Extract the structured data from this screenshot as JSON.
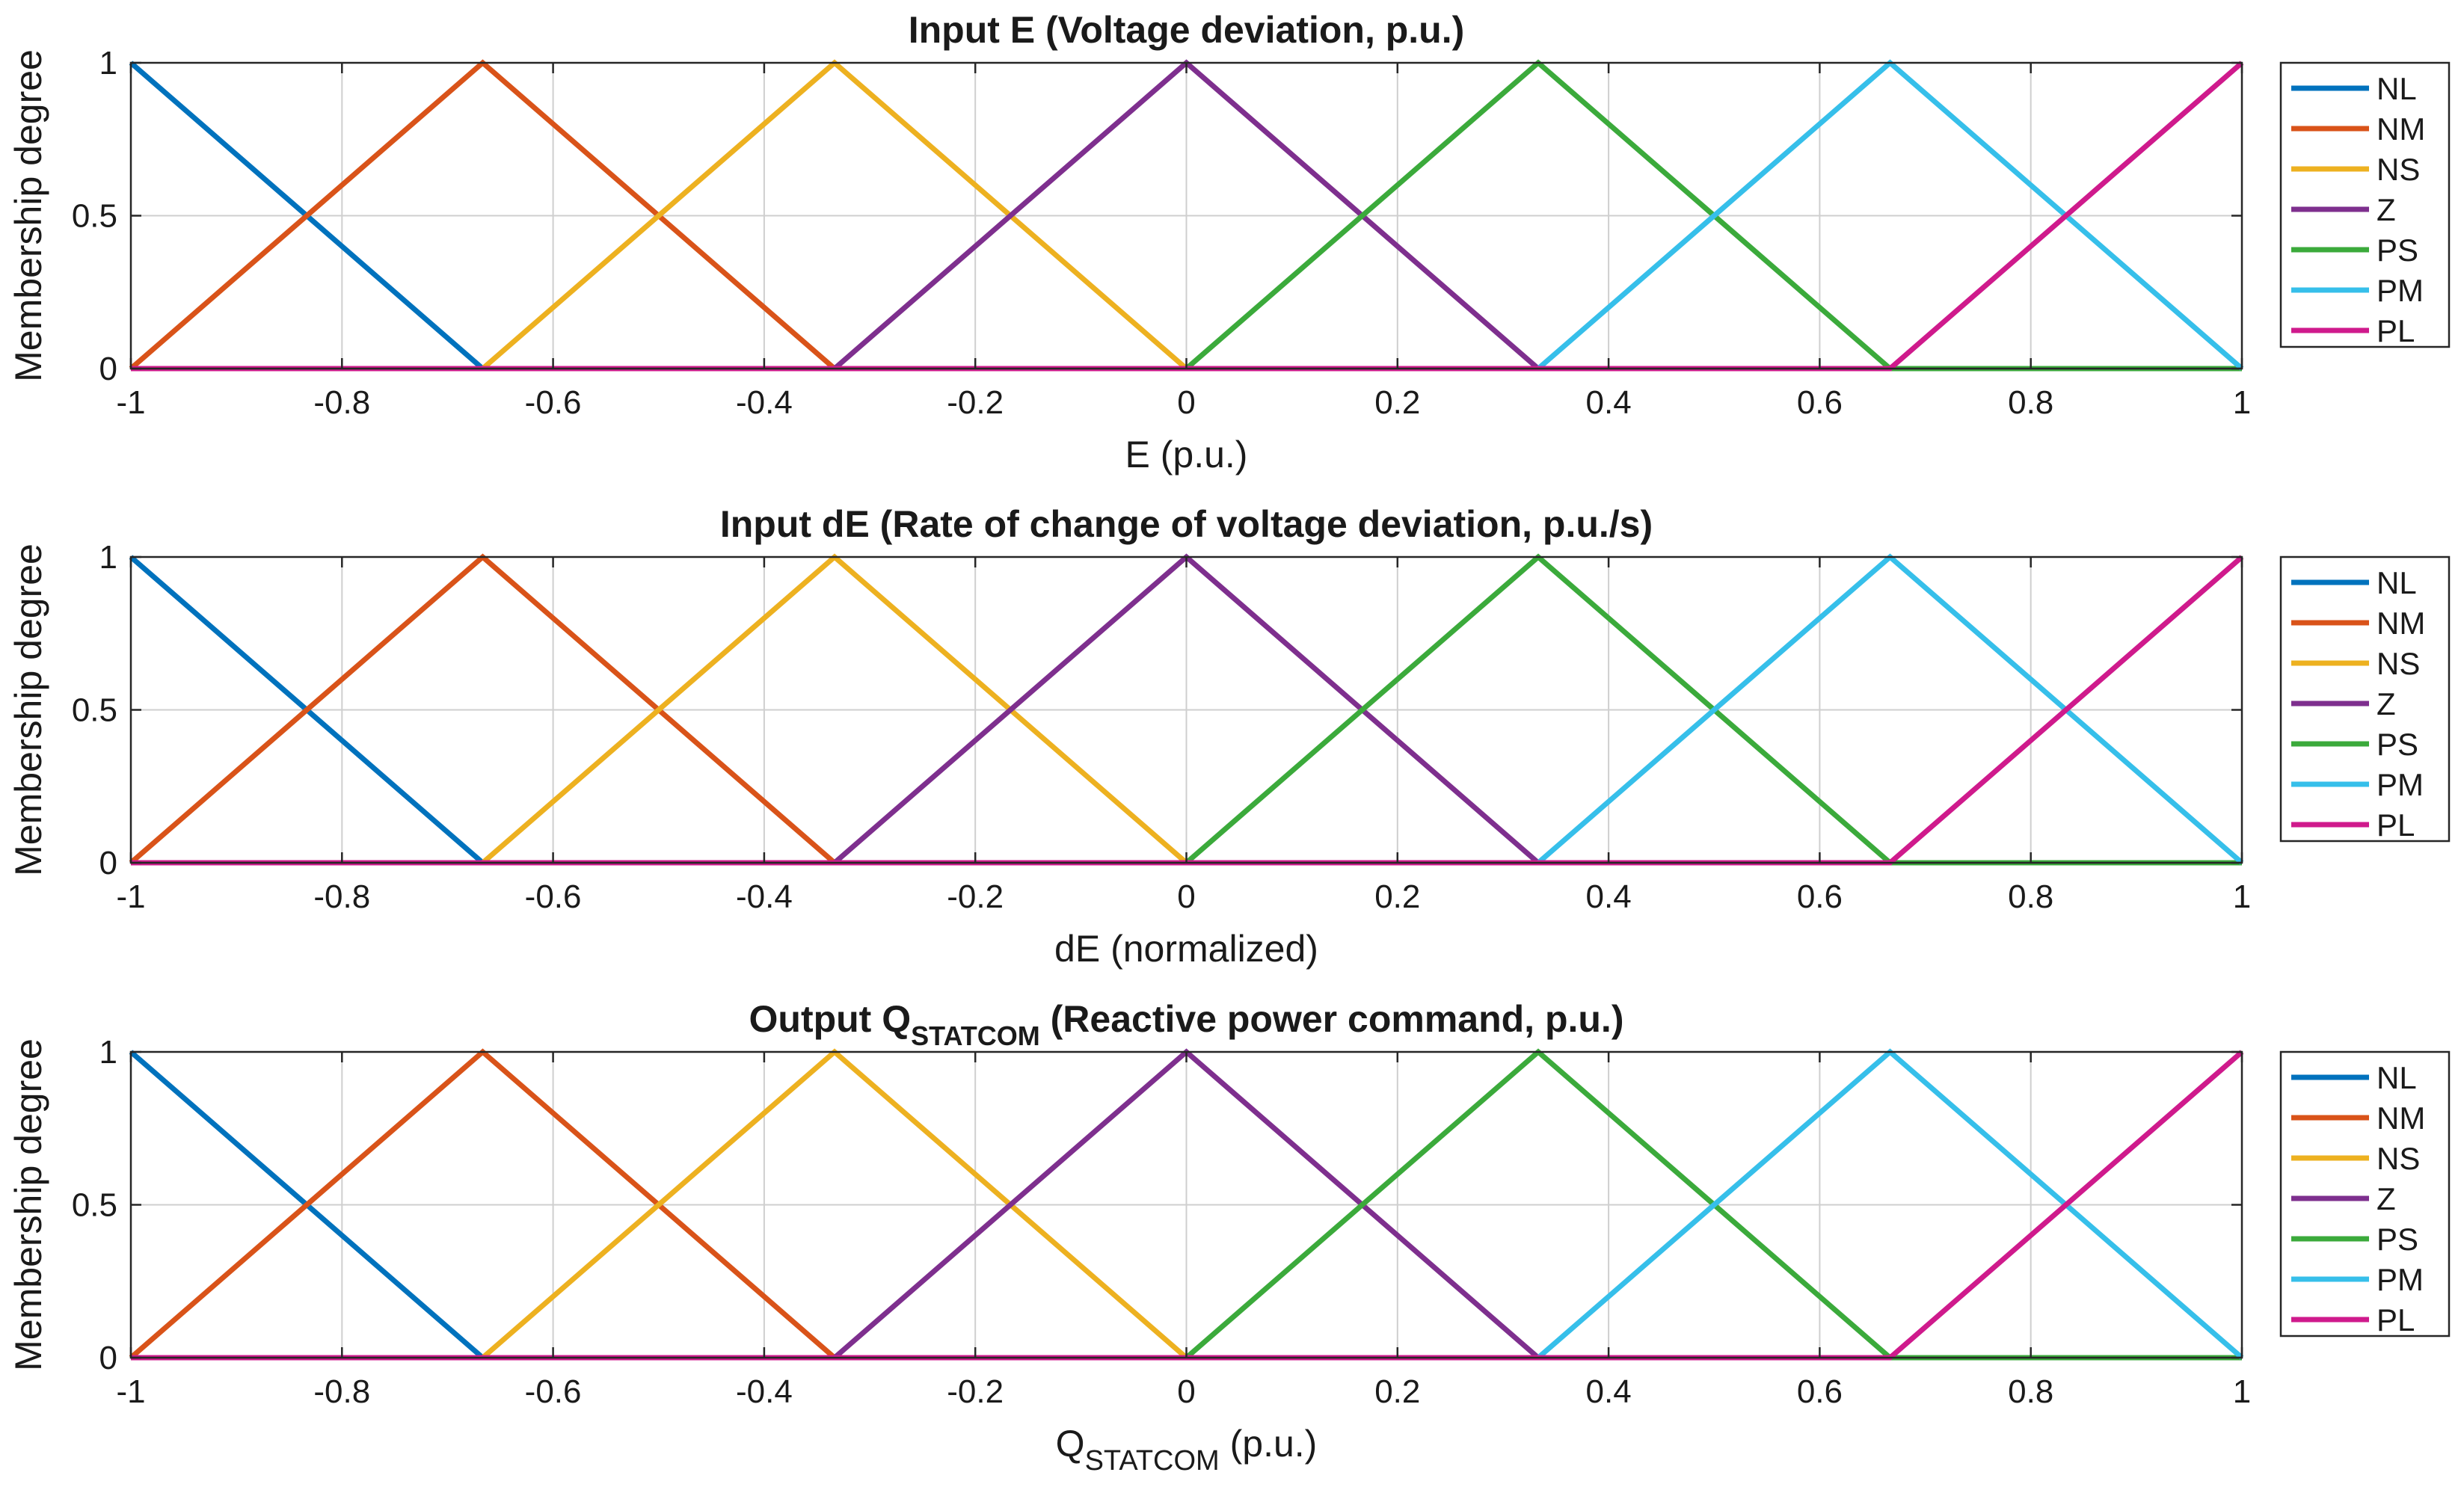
{
  "chart_data": [
    {
      "type": "line",
      "title": "Input E (Voltage deviation, p.u.)",
      "xlabel": "E (p.u.)",
      "ylabel": "Membership degree",
      "xlim": [
        -1,
        1
      ],
      "ylim": [
        0,
        1
      ],
      "xticks": [
        -1,
        -0.8,
        -0.6,
        -0.4,
        -0.2,
        0,
        0.2,
        0.4,
        0.6,
        0.8,
        1
      ],
      "xtick_labels": [
        "-1",
        "-0.8",
        "-0.6",
        "-0.4",
        "-0.2",
        "0",
        "0.2",
        "0.4",
        "0.6",
        "0.8",
        "1"
      ],
      "yticks": [
        0,
        0.5,
        1
      ],
      "ytick_labels": [
        "0",
        "0.5",
        "1"
      ],
      "grid": true,
      "legend_position": "outside-right",
      "series": [
        {
          "name": "NL",
          "color": "#0072BD",
          "x": [
            -1,
            -1,
            -0.6667,
            1
          ],
          "y": [
            1,
            1,
            0,
            0
          ]
        },
        {
          "name": "NM",
          "color": "#D95319",
          "x": [
            -1,
            -0.6667,
            -0.3333,
            1
          ],
          "y": [
            0,
            1,
            0,
            0
          ]
        },
        {
          "name": "NS",
          "color": "#EDB120",
          "x": [
            -1,
            -0.6667,
            -0.3333,
            0,
            1
          ],
          "y": [
            0,
            0,
            1,
            0,
            0
          ]
        },
        {
          "name": "Z",
          "color": "#7E2F8E",
          "x": [
            -1,
            -0.3333,
            0,
            0.3333,
            1
          ],
          "y": [
            0,
            0,
            1,
            0,
            0
          ]
        },
        {
          "name": "PS",
          "color": "#3BAA3B",
          "x": [
            -1,
            0,
            0.3333,
            0.6667,
            1
          ],
          "y": [
            0,
            0,
            1,
            0,
            0
          ]
        },
        {
          "name": "PM",
          "color": "#36BFEA",
          "x": [
            -1,
            0.3333,
            0.6667,
            1
          ],
          "y": [
            0,
            0,
            1,
            0
          ]
        },
        {
          "name": "PL",
          "color": "#CF1A8C",
          "x": [
            -1,
            0.6667,
            1,
            1
          ],
          "y": [
            0,
            0,
            1,
            1
          ]
        }
      ]
    },
    {
      "type": "line",
      "title": "Input dE (Rate of change of voltage deviation, p.u./s)",
      "xlabel": "dE (normalized)",
      "ylabel": "Membership degree",
      "xlim": [
        -1,
        1
      ],
      "ylim": [
        0,
        1
      ],
      "xticks": [
        -1,
        -0.8,
        -0.6,
        -0.4,
        -0.2,
        0,
        0.2,
        0.4,
        0.6,
        0.8,
        1
      ],
      "xtick_labels": [
        "-1",
        "-0.8",
        "-0.6",
        "-0.4",
        "-0.2",
        "0",
        "0.2",
        "0.4",
        "0.6",
        "0.8",
        "1"
      ],
      "yticks": [
        0,
        0.5,
        1
      ],
      "ytick_labels": [
        "0",
        "0.5",
        "1"
      ],
      "grid": true,
      "legend_position": "outside-right",
      "series": [
        {
          "name": "NL",
          "color": "#0072BD",
          "x": [
            -1,
            -1,
            -0.6667,
            1
          ],
          "y": [
            1,
            1,
            0,
            0
          ]
        },
        {
          "name": "NM",
          "color": "#D95319",
          "x": [
            -1,
            -0.6667,
            -0.3333,
            1
          ],
          "y": [
            0,
            1,
            0,
            0
          ]
        },
        {
          "name": "NS",
          "color": "#EDB120",
          "x": [
            -1,
            -0.6667,
            -0.3333,
            0,
            1
          ],
          "y": [
            0,
            0,
            1,
            0,
            0
          ]
        },
        {
          "name": "Z",
          "color": "#7E2F8E",
          "x": [
            -1,
            -0.3333,
            0,
            0.3333,
            1
          ],
          "y": [
            0,
            0,
            1,
            0,
            0
          ]
        },
        {
          "name": "PS",
          "color": "#3BAA3B",
          "x": [
            -1,
            0,
            0.3333,
            0.6667,
            1
          ],
          "y": [
            0,
            0,
            1,
            0,
            0
          ]
        },
        {
          "name": "PM",
          "color": "#36BFEA",
          "x": [
            -1,
            0.3333,
            0.6667,
            1
          ],
          "y": [
            0,
            0,
            1,
            0
          ]
        },
        {
          "name": "PL",
          "color": "#CF1A8C",
          "x": [
            -1,
            0.6667,
            1,
            1
          ],
          "y": [
            0,
            0,
            1,
            1
          ]
        }
      ]
    },
    {
      "type": "line",
      "title_main": "Output Q",
      "title_sub": "STATCOM",
      "title_rest": " (Reactive power command, p.u.)",
      "xlabel_main": "Q",
      "xlabel_sub": "STATCOM",
      "xlabel_rest": " (p.u.)",
      "ylabel": "Membership degree",
      "xlim": [
        -1,
        1
      ],
      "ylim": [
        0,
        1
      ],
      "xticks": [
        -1,
        -0.8,
        -0.6,
        -0.4,
        -0.2,
        0,
        0.2,
        0.4,
        0.6,
        0.8,
        1
      ],
      "xtick_labels": [
        "-1",
        "-0.8",
        "-0.6",
        "-0.4",
        "-0.2",
        "0",
        "0.2",
        "0.4",
        "0.6",
        "0.8",
        "1"
      ],
      "yticks": [
        0,
        0.5,
        1
      ],
      "ytick_labels": [
        "0",
        "0.5",
        "1"
      ],
      "grid": true,
      "legend_position": "outside-right",
      "series": [
        {
          "name": "NL",
          "color": "#0072BD",
          "x": [
            -1,
            -1,
            -0.6667,
            1
          ],
          "y": [
            1,
            1,
            0,
            0
          ]
        },
        {
          "name": "NM",
          "color": "#D95319",
          "x": [
            -1,
            -0.6667,
            -0.3333,
            1
          ],
          "y": [
            0,
            1,
            0,
            0
          ]
        },
        {
          "name": "NS",
          "color": "#EDB120",
          "x": [
            -1,
            -0.6667,
            -0.3333,
            0,
            1
          ],
          "y": [
            0,
            0,
            1,
            0,
            0
          ]
        },
        {
          "name": "Z",
          "color": "#7E2F8E",
          "x": [
            -1,
            -0.3333,
            0,
            0.3333,
            1
          ],
          "y": [
            0,
            0,
            1,
            0,
            0
          ]
        },
        {
          "name": "PS",
          "color": "#3BAA3B",
          "x": [
            -1,
            0,
            0.3333,
            0.6667,
            1
          ],
          "y": [
            0,
            0,
            1,
            0,
            0
          ]
        },
        {
          "name": "PM",
          "color": "#36BFEA",
          "x": [
            -1,
            0.3333,
            0.6667,
            1
          ],
          "y": [
            0,
            0,
            1,
            0
          ]
        },
        {
          "name": "PL",
          "color": "#CF1A8C",
          "x": [
            -1,
            0.6667,
            1,
            1
          ],
          "y": [
            0,
            0,
            1,
            1
          ]
        }
      ]
    }
  ]
}
